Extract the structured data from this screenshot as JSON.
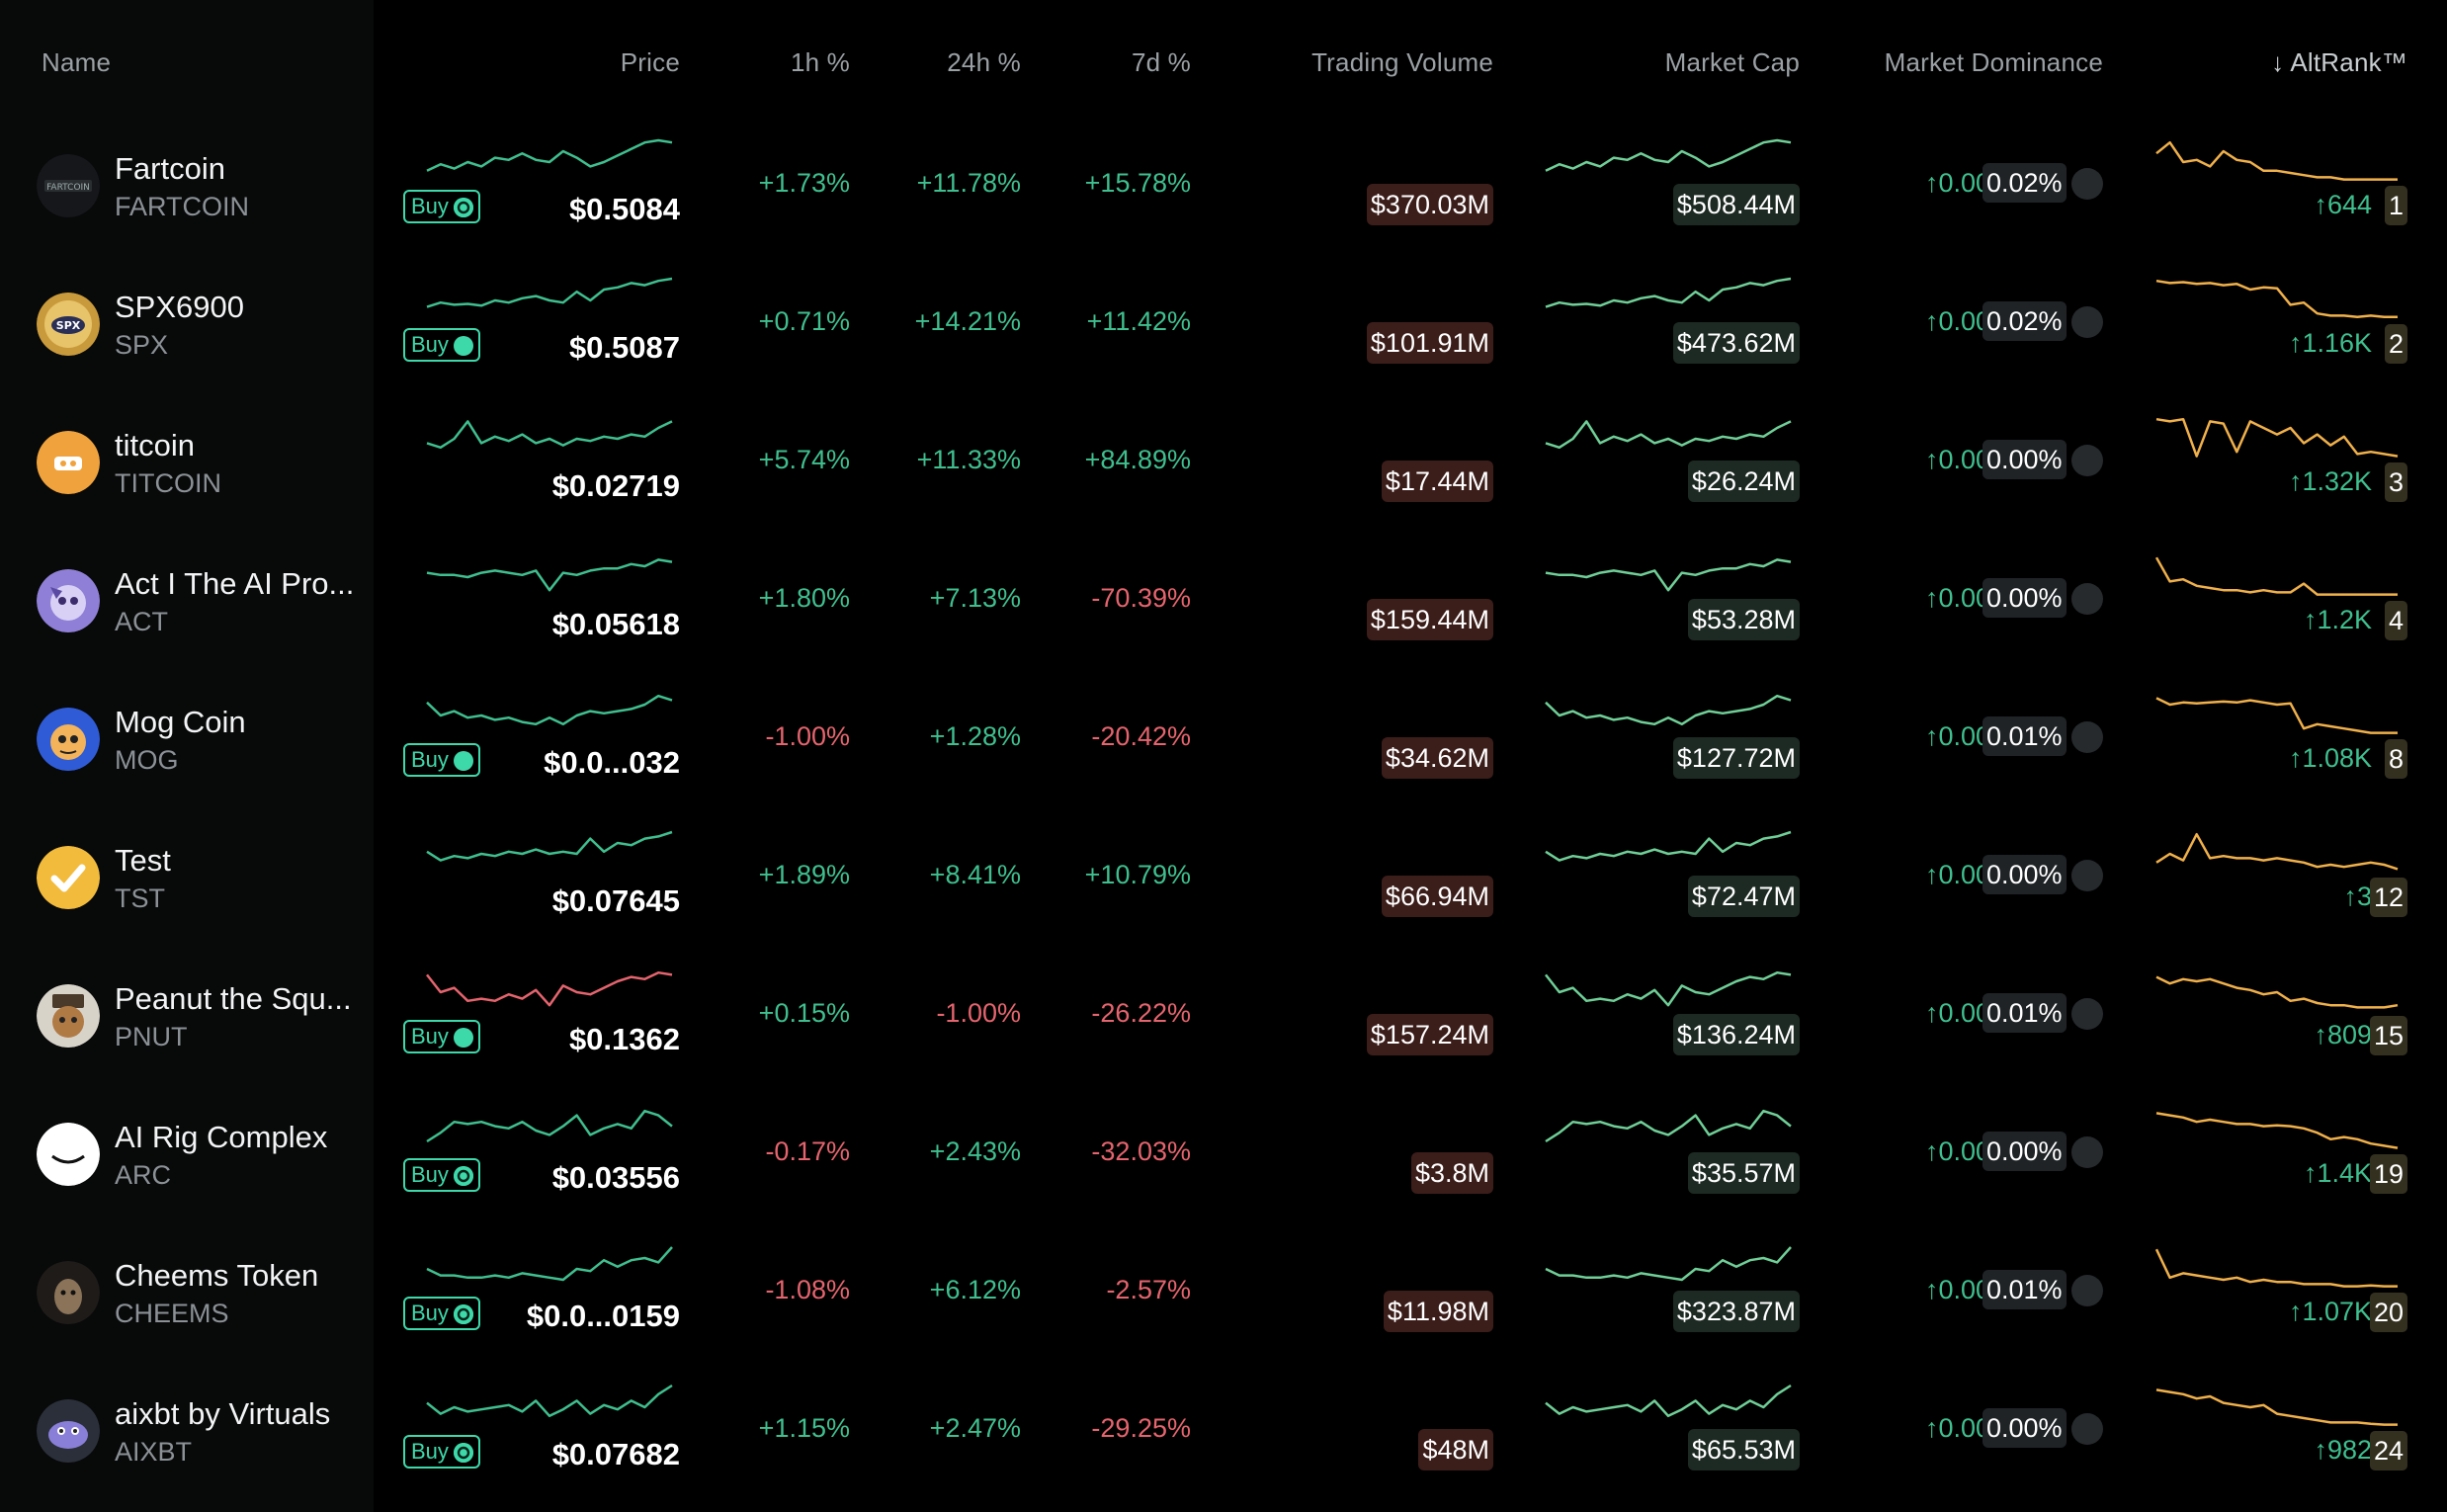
{
  "header": {
    "name": "Name",
    "price": "Price",
    "h1": "1h %",
    "h24": "24h %",
    "d7": "7d %",
    "volume": "Trading Volume",
    "mcap": "Market Cap",
    "dominance": "Market Dominance",
    "altrank": "↓ AltRank™"
  },
  "buy_label": "Buy",
  "colors": {
    "positive": "#3fbf8f",
    "negative": "#e5646e",
    "accent": "#3ed9a9",
    "altrank_line": "#f0b04a"
  },
  "rows": [
    {
      "name": "Fartcoin",
      "symbol": "FARTCOIN",
      "buy": true,
      "buy_icon": "circle-logo-icon",
      "price": "$0.5084",
      "h1": "+1.73%",
      "h24": "+11.78%",
      "d7": "+15.78%",
      "volume": "$370.03M",
      "mcap": "$508.44M",
      "dom_change": "↑0.00%",
      "dominance": "0.02%",
      "alt_change": "↑644",
      "alt_rank": "1",
      "trend": "up",
      "spark": [
        0.3,
        0.45,
        0.35,
        0.5,
        0.4,
        0.6,
        0.55,
        0.7,
        0.55,
        0.5,
        0.75,
        0.6,
        0.4,
        0.5,
        0.65,
        0.8,
        0.95,
        1.0,
        0.95
      ],
      "alt": [
        0.7,
        0.95,
        0.5,
        0.55,
        0.4,
        0.75,
        0.55,
        0.5,
        0.3,
        0.3,
        0.25,
        0.2,
        0.15,
        0.15,
        0.1,
        0.1,
        0.1,
        0.1,
        0.1
      ]
    },
    {
      "name": "SPX6900",
      "symbol": "SPX",
      "buy": true,
      "buy_icon": "kraken-icon",
      "price": "$0.5087",
      "h1": "+0.71%",
      "h24": "+14.21%",
      "d7": "+11.42%",
      "volume": "$101.91M",
      "mcap": "$473.62M",
      "dom_change": "↑0.00%",
      "dominance": "0.02%",
      "alt_change": "↑1.16K",
      "alt_rank": "2",
      "trend": "up",
      "spark": [
        0.35,
        0.45,
        0.4,
        0.42,
        0.38,
        0.5,
        0.45,
        0.55,
        0.6,
        0.5,
        0.45,
        0.7,
        0.5,
        0.75,
        0.8,
        0.9,
        0.85,
        0.95,
        1.0
      ],
      "alt": [
        0.95,
        0.9,
        0.92,
        0.88,
        0.9,
        0.85,
        0.88,
        0.75,
        0.8,
        0.78,
        0.4,
        0.45,
        0.2,
        0.15,
        0.15,
        0.12,
        0.15,
        0.12,
        0.12
      ]
    },
    {
      "name": "titcoin",
      "symbol": "TITCOIN",
      "buy": false,
      "price": "$0.02719",
      "h1": "+5.74%",
      "h24": "+11.33%",
      "d7": "+84.89%",
      "volume": "$17.44M",
      "mcap": "$26.24M",
      "dom_change": "↑0.00%",
      "dominance": "0.00%",
      "alt_change": "↑1.32K",
      "alt_rank": "3",
      "trend": "up",
      "spark": [
        0.4,
        0.3,
        0.5,
        0.9,
        0.4,
        0.55,
        0.45,
        0.6,
        0.4,
        0.5,
        0.35,
        0.5,
        0.45,
        0.55,
        0.5,
        0.6,
        0.55,
        0.75,
        0.9
      ],
      "alt": [
        0.95,
        0.9,
        0.95,
        0.1,
        0.9,
        0.85,
        0.2,
        0.9,
        0.75,
        0.6,
        0.75,
        0.4,
        0.6,
        0.35,
        0.55,
        0.15,
        0.2,
        0.15,
        0.1
      ]
    },
    {
      "name": "Act I The AI Pro...",
      "symbol": "ACT",
      "buy": false,
      "price": "$0.05618",
      "h1": "+1.80%",
      "h24": "+7.13%",
      "d7": "-70.39%",
      "volume": "$159.44M",
      "mcap": "$53.28M",
      "dom_change": "↑0.00%",
      "dominance": "0.00%",
      "alt_change": "↑1.2K",
      "alt_rank": "4",
      "trend": "up",
      "spark": [
        0.6,
        0.55,
        0.55,
        0.5,
        0.6,
        0.65,
        0.6,
        0.55,
        0.65,
        0.2,
        0.6,
        0.55,
        0.65,
        0.7,
        0.7,
        0.8,
        0.75,
        0.9,
        0.85
      ],
      "alt": [
        0.95,
        0.4,
        0.45,
        0.3,
        0.25,
        0.2,
        0.2,
        0.15,
        0.2,
        0.15,
        0.15,
        0.35,
        0.1,
        0.1,
        0.1,
        0.1,
        0.1,
        0.1,
        0.1
      ]
    },
    {
      "name": "Mog Coin",
      "symbol": "MOG",
      "buy": true,
      "buy_icon": "kraken-icon",
      "price": "$0.0...032",
      "h1": "-1.00%",
      "h24": "+1.28%",
      "d7": "-20.42%",
      "volume": "$34.62M",
      "mcap": "$127.72M",
      "dom_change": "↑0.00%",
      "dominance": "0.01%",
      "alt_change": "↑1.08K",
      "alt_rank": "8",
      "trend": "up",
      "spark": [
        0.8,
        0.5,
        0.6,
        0.45,
        0.5,
        0.4,
        0.45,
        0.35,
        0.3,
        0.45,
        0.3,
        0.5,
        0.6,
        0.55,
        0.6,
        0.65,
        0.75,
        0.95,
        0.85
      ],
      "alt": [
        0.9,
        0.75,
        0.8,
        0.78,
        0.8,
        0.82,
        0.8,
        0.85,
        0.8,
        0.75,
        0.78,
        0.2,
        0.3,
        0.25,
        0.2,
        0.15,
        0.1,
        0.1,
        0.1
      ]
    },
    {
      "name": "Test",
      "symbol": "TST",
      "buy": false,
      "price": "$0.07645",
      "h1": "+1.89%",
      "h24": "+8.41%",
      "d7": "+10.79%",
      "volume": "$66.94M",
      "mcap": "$72.47M",
      "dom_change": "↑0.00%",
      "dominance": "0.00%",
      "alt_change": "↑3",
      "alt_rank": "12",
      "trend": "up",
      "spark": [
        0.55,
        0.35,
        0.45,
        0.4,
        0.5,
        0.45,
        0.55,
        0.5,
        0.6,
        0.5,
        0.55,
        0.5,
        0.85,
        0.55,
        0.75,
        0.7,
        0.85,
        0.9,
        1.0
      ],
      "alt": [
        0.3,
        0.5,
        0.35,
        0.95,
        0.4,
        0.45,
        0.4,
        0.4,
        0.35,
        0.4,
        0.35,
        0.3,
        0.2,
        0.25,
        0.2,
        0.25,
        0.3,
        0.25,
        0.15
      ]
    },
    {
      "name": "Peanut the Squ...",
      "symbol": "PNUT",
      "buy": true,
      "buy_icon": "kraken-icon",
      "price": "$0.1362",
      "h1": "+0.15%",
      "h24": "-1.00%",
      "d7": "-26.22%",
      "volume": "$157.24M",
      "mcap": "$136.24M",
      "dom_change": "↑0.00%",
      "dominance": "0.01%",
      "alt_change": "↑809",
      "alt_rank": "15",
      "trend": "down",
      "spark": [
        0.9,
        0.5,
        0.6,
        0.3,
        0.35,
        0.3,
        0.45,
        0.35,
        0.55,
        0.2,
        0.65,
        0.5,
        0.45,
        0.6,
        0.75,
        0.85,
        0.8,
        0.95,
        0.9
      ],
      "alt": [
        0.85,
        0.7,
        0.8,
        0.75,
        0.8,
        0.7,
        0.6,
        0.55,
        0.45,
        0.5,
        0.3,
        0.35,
        0.25,
        0.2,
        0.2,
        0.15,
        0.15,
        0.15,
        0.2
      ]
    },
    {
      "name": "AI Rig Complex",
      "symbol": "ARC",
      "buy": true,
      "buy_icon": "circle-logo-icon",
      "price": "$0.03556",
      "h1": "-0.17%",
      "h24": "+2.43%",
      "d7": "-32.03%",
      "volume": "$3.8M",
      "mcap": "$35.57M",
      "dom_change": "↑0.00%",
      "dominance": "0.00%",
      "alt_change": "↑1.4K",
      "alt_rank": "19",
      "trend": "up",
      "spark": [
        0.25,
        0.45,
        0.7,
        0.65,
        0.7,
        0.6,
        0.55,
        0.7,
        0.5,
        0.4,
        0.6,
        0.85,
        0.4,
        0.55,
        0.65,
        0.55,
        0.95,
        0.85,
        0.6
      ],
      "alt": [
        0.9,
        0.85,
        0.8,
        0.7,
        0.75,
        0.7,
        0.65,
        0.65,
        0.6,
        0.62,
        0.6,
        0.55,
        0.45,
        0.3,
        0.35,
        0.3,
        0.2,
        0.15,
        0.1
      ]
    },
    {
      "name": "Cheems Token",
      "symbol": "CHEEMS",
      "buy": true,
      "buy_icon": "circle-logo-icon",
      "price": "$0.0...0159",
      "h1": "-1.08%",
      "h24": "+6.12%",
      "d7": "-2.57%",
      "volume": "$11.98M",
      "mcap": "$323.87M",
      "dom_change": "↑0.00%",
      "dominance": "0.01%",
      "alt_change": "↑1.07K",
      "alt_rank": "20",
      "trend": "up",
      "spark": [
        0.5,
        0.35,
        0.35,
        0.3,
        0.3,
        0.35,
        0.3,
        0.4,
        0.35,
        0.3,
        0.25,
        0.5,
        0.45,
        0.7,
        0.55,
        0.7,
        0.75,
        0.65,
        1.0
      ],
      "alt": [
        0.95,
        0.3,
        0.4,
        0.35,
        0.3,
        0.25,
        0.3,
        0.2,
        0.25,
        0.2,
        0.2,
        0.15,
        0.15,
        0.15,
        0.1,
        0.1,
        0.12,
        0.1,
        0.1
      ]
    },
    {
      "name": "aixbt by Virtuals",
      "symbol": "AIXBT",
      "buy": true,
      "buy_icon": "circle-logo-icon",
      "price": "$0.07682",
      "h1": "+1.15%",
      "h24": "+2.47%",
      "d7": "-29.25%",
      "volume": "$48M",
      "mcap": "$65.53M",
      "dom_change": "↑0.00%",
      "dominance": "0.00%",
      "alt_change": "↑982",
      "alt_rank": "24",
      "trend": "up",
      "spark": [
        0.6,
        0.35,
        0.5,
        0.4,
        0.45,
        0.5,
        0.55,
        0.4,
        0.65,
        0.3,
        0.45,
        0.65,
        0.35,
        0.55,
        0.45,
        0.65,
        0.5,
        0.8,
        1.0
      ],
      "alt": [
        0.9,
        0.85,
        0.8,
        0.7,
        0.75,
        0.6,
        0.55,
        0.5,
        0.55,
        0.35,
        0.3,
        0.25,
        0.2,
        0.15,
        0.15,
        0.15,
        0.12,
        0.1,
        0.1
      ]
    }
  ]
}
